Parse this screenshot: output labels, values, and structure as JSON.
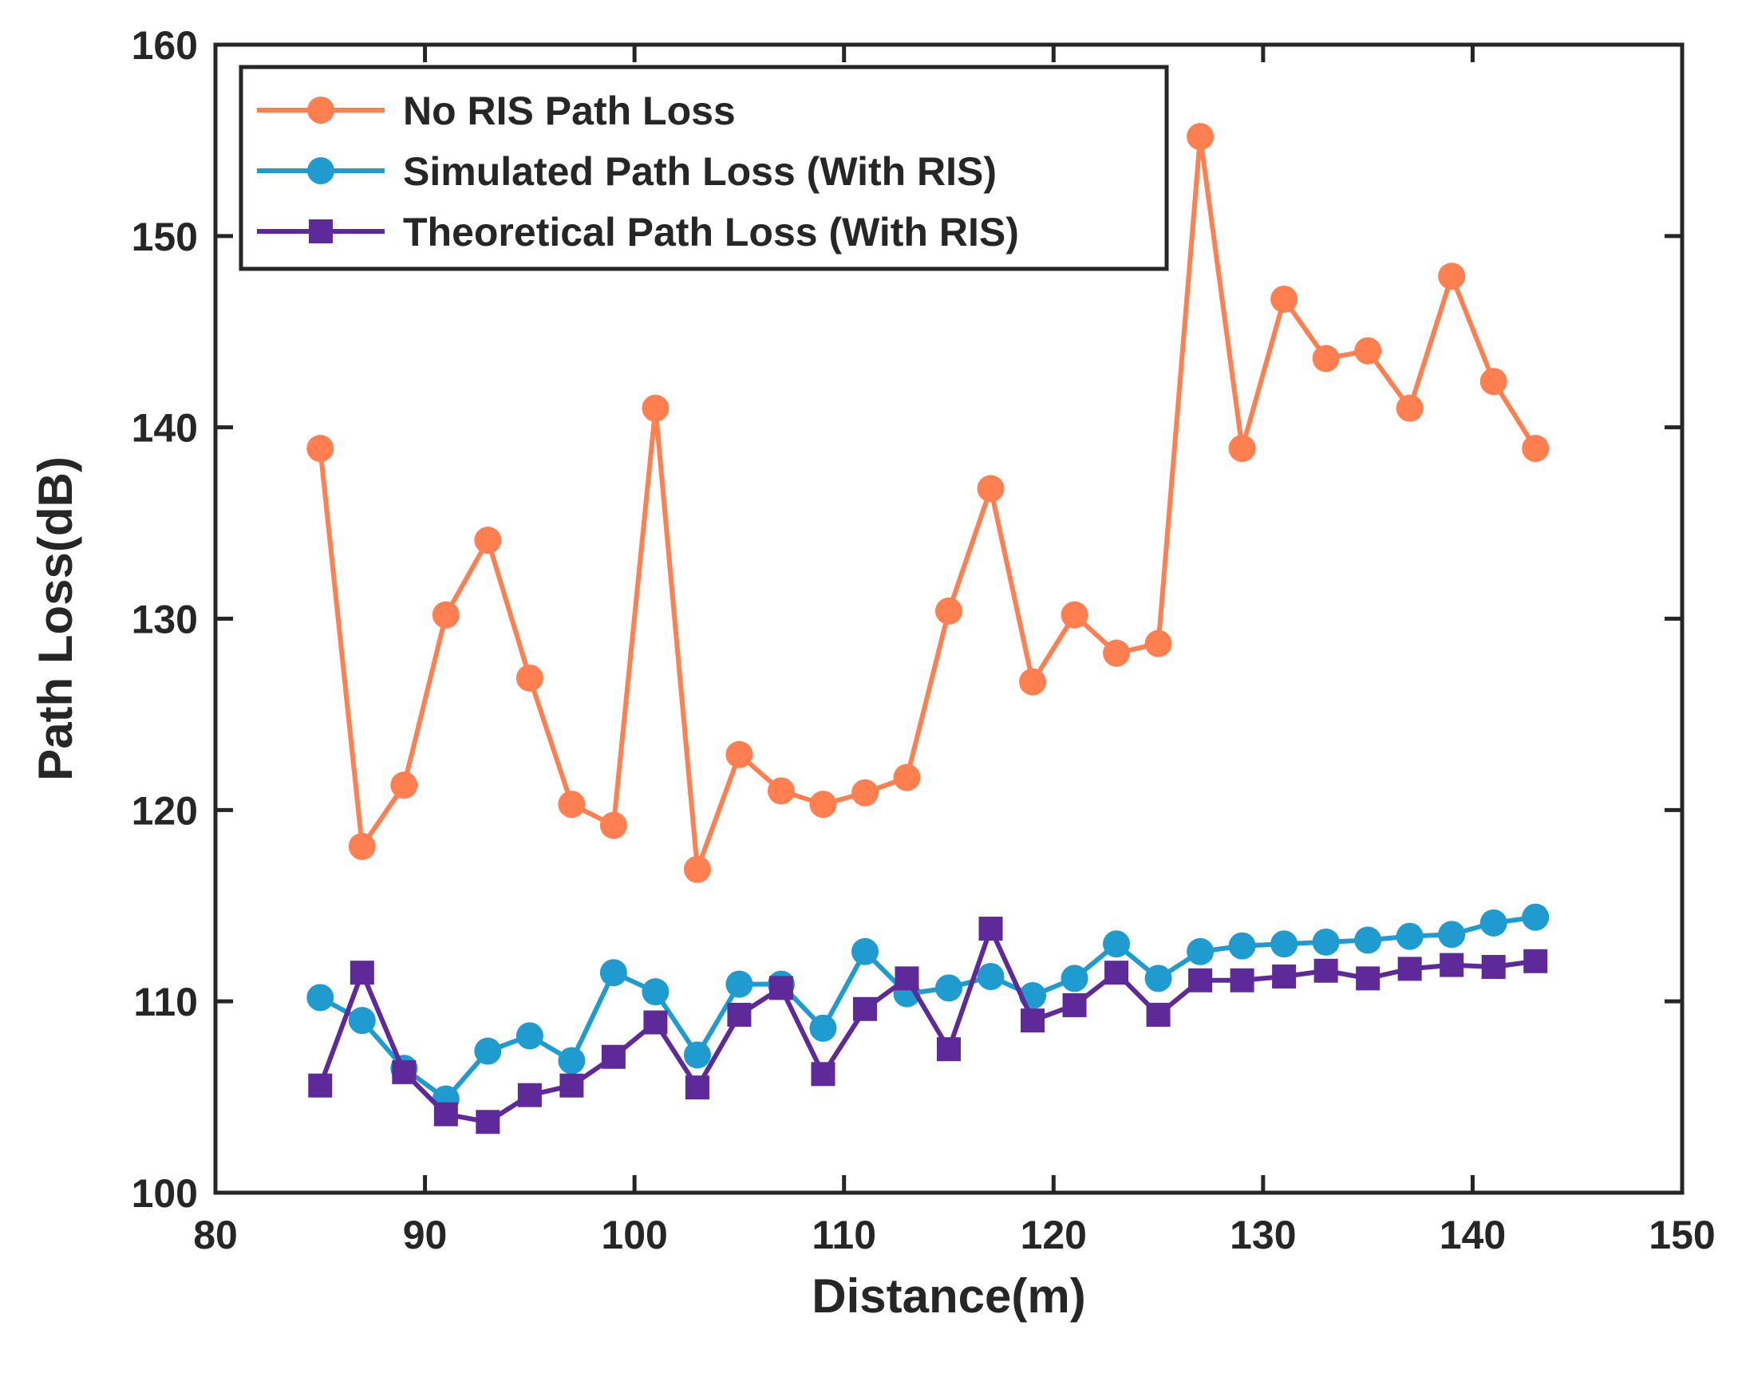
{
  "chart_data": {
    "type": "line",
    "title": "",
    "xlabel": "Distance(m)",
    "ylabel": "Path Loss(dB)",
    "xlim": [
      80,
      150
    ],
    "ylim": [
      100,
      160
    ],
    "xticks": [
      80,
      90,
      100,
      110,
      120,
      130,
      140,
      150
    ],
    "yticks": [
      100,
      110,
      120,
      130,
      140,
      150,
      160
    ],
    "legend_position": "top-left",
    "x": [
      85,
      87,
      89,
      91,
      93,
      95,
      97,
      99,
      101,
      103,
      105,
      107,
      109,
      111,
      113,
      115,
      117,
      119,
      121,
      123,
      125,
      127,
      129,
      131,
      133,
      135,
      137,
      139,
      141,
      143
    ],
    "series": [
      {
        "name": "No RIS Path Loss",
        "color": "#FF7F50",
        "marker": "circle",
        "values": [
          138.9,
          118.1,
          121.3,
          130.2,
          134.1,
          126.9,
          120.3,
          119.2,
          141.0,
          116.9,
          122.9,
          121.0,
          120.3,
          120.9,
          121.7,
          130.4,
          136.8,
          126.7,
          130.2,
          128.2,
          128.7,
          155.2,
          138.9,
          146.7,
          143.6,
          144.0,
          141.0,
          147.9,
          142.4,
          138.9
        ]
      },
      {
        "name": "Simulated Path Loss (With RIS)",
        "color": "#1F9BCF",
        "marker": "circle",
        "values": [
          110.2,
          109.0,
          106.5,
          104.9,
          107.4,
          108.2,
          106.9,
          111.5,
          110.5,
          107.2,
          110.9,
          110.9,
          108.6,
          112.6,
          110.4,
          110.7,
          111.3,
          110.3,
          111.2,
          113.0,
          111.2,
          112.6,
          112.9,
          113.0,
          113.1,
          113.2,
          113.4,
          113.5,
          114.1,
          114.4
        ]
      },
      {
        "name": "Theoretical Path Loss (With RIS)",
        "color": "#5E2A9A",
        "marker": "square",
        "values": [
          105.6,
          111.5,
          106.3,
          104.1,
          103.7,
          105.1,
          105.6,
          107.1,
          108.9,
          105.5,
          109.3,
          110.7,
          106.2,
          109.6,
          111.2,
          107.5,
          113.8,
          109.0,
          109.8,
          111.5,
          109.3,
          111.1,
          111.1,
          111.3,
          111.6,
          111.2,
          111.7,
          111.9,
          111.8,
          112.1
        ]
      }
    ]
  }
}
